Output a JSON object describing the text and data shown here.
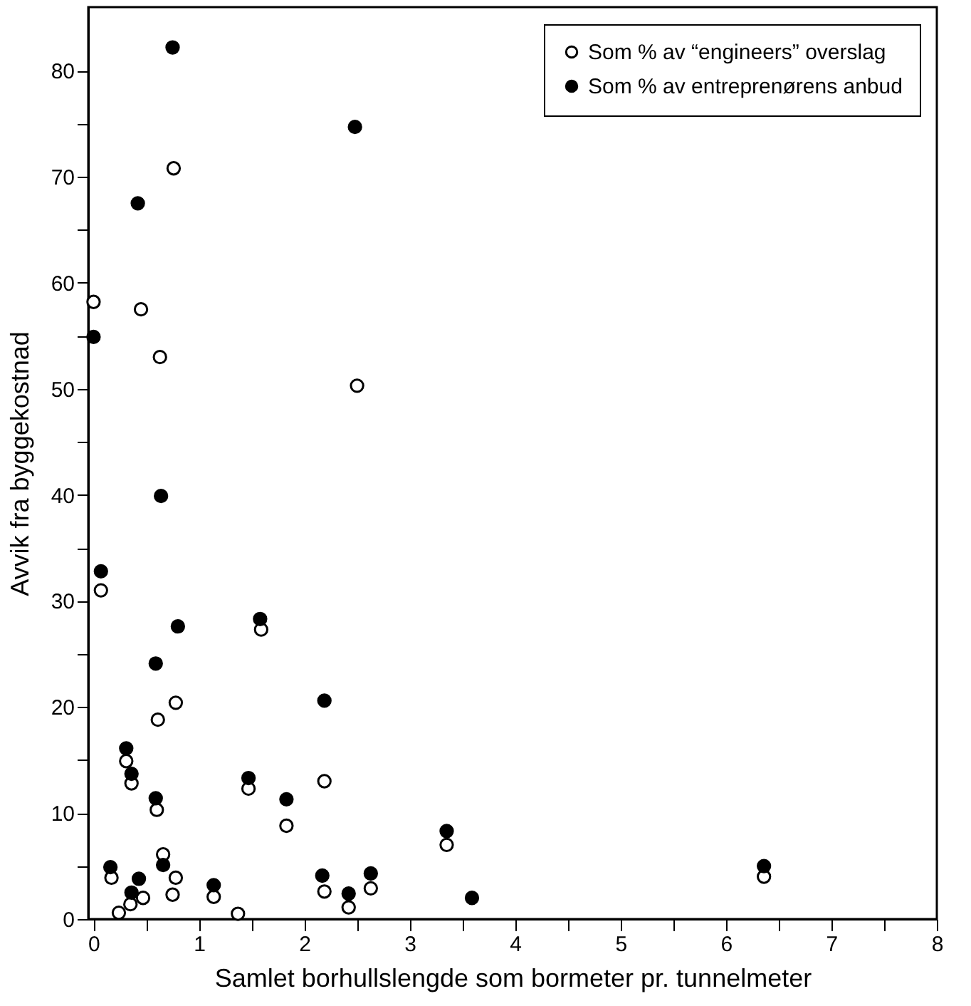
{
  "chart_data": {
    "type": "scatter",
    "xlabel": "Samlet borhullslengde som bormeter pr. tunnelmeter",
    "ylabel": "Avvik fra byggekostnad",
    "xlim": [
      -0.05,
      8
    ],
    "ylim": [
      0,
      86
    ],
    "xticks": [
      0,
      {
        "value": 0.5,
        "label": null
      },
      1,
      {
        "value": 1.5,
        "label": null
      },
      2,
      {
        "value": 2.5,
        "label": null
      },
      3,
      {
        "value": 3.5,
        "label": null
      },
      4,
      {
        "value": 4.5,
        "label": null
      },
      5,
      {
        "value": 5.5,
        "label": null
      },
      6,
      {
        "value": 6.5,
        "label": null
      },
      7,
      {
        "value": 7.5,
        "label": null
      },
      8
    ],
    "yticks": [
      0,
      {
        "value": 5,
        "label": null
      },
      10,
      {
        "value": 15,
        "label": null
      },
      20,
      {
        "value": 25,
        "label": null
      },
      30,
      {
        "value": 35,
        "label": null
      },
      40,
      {
        "value": 45,
        "label": null
      },
      50,
      {
        "value": 55,
        "label": null
      },
      60,
      {
        "value": 65,
        "label": null
      },
      70,
      {
        "value": 75,
        "label": null
      },
      80
    ],
    "grid": false,
    "legend": "top right",
    "marker": "circle",
    "series": [
      {
        "name": "Som % av “engineers” overslag",
        "color": "#ffffff",
        "x": [
          0.76,
          0,
          0.45,
          0.63,
          2.5,
          0.07,
          0.78,
          0.61,
          0.31,
          0.36,
          0.6,
          0.66,
          0.17,
          0.78,
          0.47,
          0.75,
          0.35,
          0.24,
          1.14,
          1.37,
          1.47,
          1.59,
          1.83,
          2.19,
          2.19,
          2.42,
          2.63,
          3.35,
          6.36
        ],
        "values": [
          70.8,
          58.2,
          57.5,
          53.0,
          50.3,
          31.0,
          20.4,
          18.8,
          14.9,
          12.8,
          10.3,
          6.1,
          3.9,
          3.9,
          2.0,
          2.3,
          1.4,
          0.6,
          2.1,
          0.5,
          12.3,
          27.3,
          8.8,
          13.0,
          2.6,
          1.1,
          2.9,
          7.0,
          4.0
        ]
      },
      {
        "name": "Som % av entreprenørens anbud",
        "color": "#000000",
        "x": [
          0.75,
          2.48,
          0.42,
          0,
          0.64,
          0.07,
          0.59,
          0.8,
          0.31,
          0.36,
          0.59,
          0.66,
          0.16,
          0.43,
          0.36,
          1.14,
          1.47,
          1.58,
          1.83,
          2.19,
          2.17,
          2.42,
          2.63,
          3.35,
          3.59,
          6.36
        ],
        "values": [
          82.2,
          74.7,
          67.5,
          54.9,
          39.9,
          32.8,
          24.1,
          27.6,
          16.1,
          13.7,
          11.4,
          5.1,
          4.9,
          3.8,
          2.5,
          3.2,
          13.3,
          28.3,
          11.3,
          20.6,
          4.1,
          2.4,
          4.3,
          8.3,
          2.0,
          5.0
        ]
      }
    ]
  }
}
